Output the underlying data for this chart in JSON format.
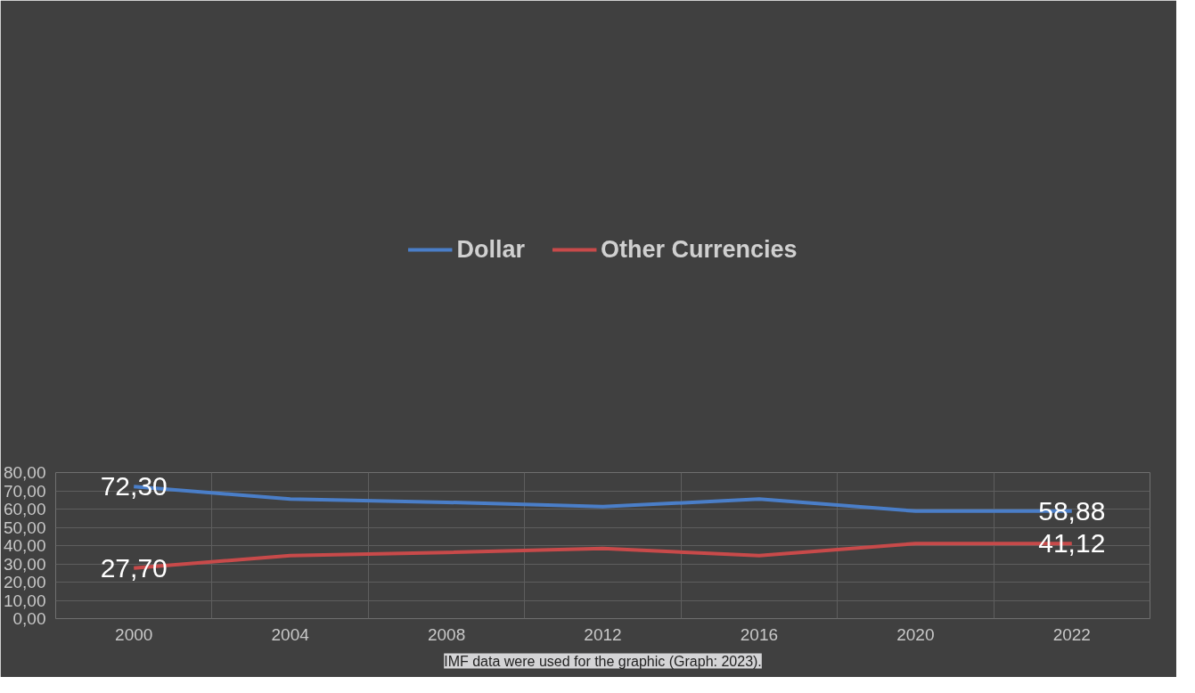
{
  "chart_data": {
    "type": "line",
    "categories": [
      "2000",
      "2004",
      "2008",
      "2012",
      "2016",
      "2020",
      "2022"
    ],
    "series": [
      {
        "name": "Dollar",
        "color": "#4a7ec8",
        "values": [
          72.3,
          65.5,
          63.7,
          61.3,
          65.5,
          58.88,
          58.88
        ],
        "value_labels": [
          "72,30",
          null,
          null,
          null,
          null,
          null,
          "58,88"
        ]
      },
      {
        "name": "Other Currencies",
        "color": "#c84a4a",
        "values": [
          27.7,
          34.5,
          36.2,
          38.4,
          34.5,
          41.12,
          41.12
        ],
        "value_labels": [
          "27,70",
          null,
          null,
          null,
          null,
          null,
          "41,12"
        ]
      }
    ],
    "ylim": [
      0,
      80
    ],
    "yticks": [
      {
        "value": 0,
        "label": "0,00"
      },
      {
        "value": 10,
        "label": "10,00"
      },
      {
        "value": 20,
        "label": "20,00"
      },
      {
        "value": 30,
        "label": "30,00"
      },
      {
        "value": 40,
        "label": "40,00"
      },
      {
        "value": 50,
        "label": "50,00"
      },
      {
        "value": 60,
        "label": "60,00"
      },
      {
        "value": 70,
        "label": "70,00"
      },
      {
        "value": 80,
        "label": "80,00"
      }
    ],
    "grid": true,
    "legend": "top",
    "marker": "none",
    "line_style": "solid",
    "annotations": [
      "IMF data were used for the graphic (Graph: 2023)."
    ]
  }
}
